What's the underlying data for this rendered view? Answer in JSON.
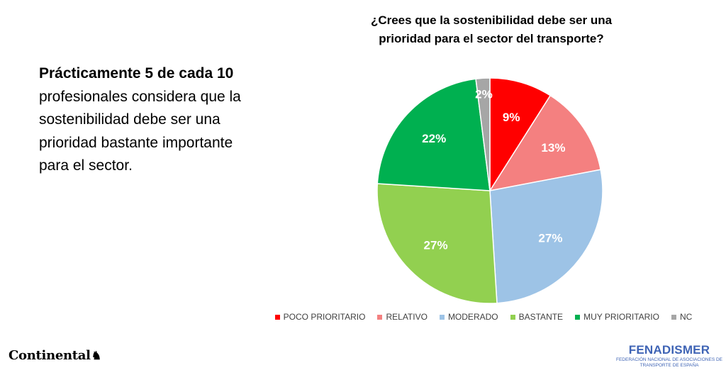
{
  "left_text": {
    "bold": "Prácticamente 5 de cada 10",
    "rest": " profesionales considera que la sostenibilidad debe ser una prioridad bastante importante para el sector."
  },
  "chart_data": {
    "type": "pie",
    "title": "¿Crees que la sostenibilidad debe ser una prioridad para el sector del transporte?",
    "categories": [
      "POCO PRIORITARIO",
      "RELATIVO",
      "MODERADO",
      "BASTANTE",
      "MUY PRIORITARIO",
      "NC"
    ],
    "values": [
      9,
      13,
      27,
      27,
      22,
      2
    ],
    "labels": [
      "9%",
      "13%",
      "27%",
      "27%",
      "22%",
      "2%"
    ],
    "colors": [
      "#ff0000",
      "#f48080",
      "#9dc3e6",
      "#92d050",
      "#00b050",
      "#a6a6a6"
    ],
    "legend_position": "bottom",
    "start_angle": "12 o'clock, clockwise"
  },
  "logos": {
    "continental": "Continental",
    "fenadismer": "FENADISMER",
    "fenadismer_sub": "Federación Nacional de Asociaciones de Transporte de España"
  }
}
